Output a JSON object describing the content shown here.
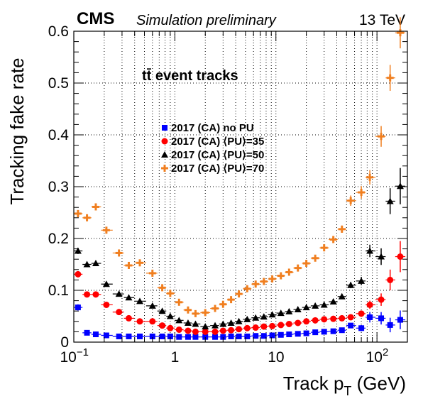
{
  "header": {
    "experiment": "CMS",
    "status": "Simulation preliminary",
    "energy": "13 TeV"
  },
  "annotation": "tt̄ event tracks",
  "chart_data": {
    "type": "scatter",
    "xlabel": "Track p_T (GeV)",
    "ylabel": "Tracking fake rate",
    "xscale": "log",
    "xlim": [
      0.1,
      200
    ],
    "ylim": [
      0,
      0.6
    ],
    "grid": true,
    "legend_position": "center-left",
    "x_ticks": [
      {
        "value": 0.1,
        "label": "10",
        "exp": "−1"
      },
      {
        "value": 1,
        "label": "1",
        "exp": ""
      },
      {
        "value": 10,
        "label": "10",
        "exp": ""
      },
      {
        "value": 100,
        "label": "10",
        "exp": "2"
      }
    ],
    "y_ticks": [
      0,
      0.1,
      0.2,
      0.3,
      0.4,
      0.5,
      0.6
    ],
    "x": [
      0.11,
      0.135,
      0.165,
      0.21,
      0.28,
      0.35,
      0.45,
      0.6,
      0.75,
      0.9,
      1.1,
      1.35,
      1.6,
      2.0,
      2.5,
      3.0,
      3.6,
      4.3,
      5.2,
      6.3,
      7.6,
      9.2,
      11.2,
      13.5,
      16.5,
      20,
      24.5,
      30,
      37,
      45,
      55,
      70,
      85,
      110,
      135,
      170
    ],
    "series": [
      {
        "name": "2017 (CA) no PU",
        "marker": "square",
        "color": "#0000ff",
        "y": [
          0.067,
          0.018,
          0.015,
          0.013,
          0.011,
          0.011,
          0.011,
          0.011,
          0.011,
          0.011,
          0.01,
          0.01,
          0.01,
          0.01,
          0.01,
          0.01,
          0.011,
          0.011,
          0.011,
          0.012,
          0.012,
          0.013,
          0.014,
          0.015,
          0.016,
          0.017,
          0.019,
          0.02,
          0.021,
          0.023,
          0.032,
          0.027,
          0.048,
          0.046,
          0.033,
          0.043
        ],
        "err": [
          0.006,
          0.003,
          0.002,
          0.002,
          0.002,
          0.002,
          0.002,
          0.002,
          0.002,
          0.002,
          0.002,
          0.002,
          0.002,
          0.002,
          0.002,
          0.002,
          0.002,
          0.002,
          0.002,
          0.002,
          0.002,
          0.002,
          0.002,
          0.002,
          0.002,
          0.003,
          0.003,
          0.003,
          0.004,
          0.004,
          0.005,
          0.006,
          0.01,
          0.012,
          0.014,
          0.018
        ]
      },
      {
        "name": "2017 (CA) ⟨PU⟩=35",
        "marker": "circle",
        "color": "#ff0000",
        "y": [
          0.131,
          0.092,
          0.092,
          0.072,
          0.058,
          0.046,
          0.04,
          0.04,
          0.032,
          0.027,
          0.024,
          0.022,
          0.02,
          0.02,
          0.02,
          0.022,
          0.023,
          0.025,
          0.027,
          0.028,
          0.03,
          0.031,
          0.033,
          0.035,
          0.037,
          0.04,
          0.042,
          0.044,
          0.045,
          0.046,
          0.048,
          0.055,
          0.072,
          0.082,
          0.12,
          0.165
        ],
        "err": [
          0.006,
          0.004,
          0.004,
          0.003,
          0.003,
          0.003,
          0.003,
          0.003,
          0.002,
          0.002,
          0.002,
          0.002,
          0.002,
          0.002,
          0.002,
          0.002,
          0.002,
          0.002,
          0.002,
          0.002,
          0.002,
          0.002,
          0.002,
          0.002,
          0.003,
          0.003,
          0.003,
          0.003,
          0.004,
          0.004,
          0.005,
          0.006,
          0.008,
          0.012,
          0.02,
          0.03
        ]
      },
      {
        "name": "2017 (CA) ⟨PU⟩=50",
        "marker": "triangle",
        "color": "#000000",
        "y": [
          0.176,
          0.15,
          0.152,
          0.112,
          0.093,
          0.086,
          0.079,
          0.07,
          0.06,
          0.05,
          0.042,
          0.037,
          0.035,
          0.03,
          0.032,
          0.035,
          0.037,
          0.04,
          0.044,
          0.047,
          0.049,
          0.053,
          0.056,
          0.059,
          0.063,
          0.067,
          0.07,
          0.072,
          0.078,
          0.088,
          0.11,
          0.118,
          0.176,
          0.165,
          0.272,
          0.301
        ],
        "err": [
          0.006,
          0.005,
          0.005,
          0.004,
          0.004,
          0.003,
          0.003,
          0.003,
          0.003,
          0.003,
          0.002,
          0.002,
          0.002,
          0.002,
          0.002,
          0.002,
          0.002,
          0.002,
          0.002,
          0.002,
          0.002,
          0.002,
          0.002,
          0.003,
          0.003,
          0.003,
          0.003,
          0.004,
          0.004,
          0.005,
          0.006,
          0.008,
          0.012,
          0.016,
          0.025,
          0.035
        ]
      },
      {
        "name": "2017 (CA) ⟨PU⟩=70",
        "marker": "cross",
        "color": "#f07f20",
        "y": [
          0.248,
          0.24,
          0.261,
          0.216,
          0.172,
          0.148,
          0.153,
          0.133,
          0.105,
          0.094,
          0.077,
          0.062,
          0.055,
          0.057,
          0.065,
          0.073,
          0.082,
          0.093,
          0.103,
          0.112,
          0.117,
          0.122,
          0.128,
          0.135,
          0.143,
          0.152,
          0.162,
          0.182,
          0.198,
          0.218,
          0.273,
          0.289,
          0.318,
          0.397,
          0.51,
          0.597
        ],
        "err": [
          0.007,
          0.006,
          0.006,
          0.005,
          0.005,
          0.004,
          0.004,
          0.004,
          0.003,
          0.003,
          0.003,
          0.003,
          0.003,
          0.003,
          0.003,
          0.003,
          0.003,
          0.003,
          0.003,
          0.003,
          0.003,
          0.003,
          0.003,
          0.004,
          0.004,
          0.004,
          0.005,
          0.005,
          0.006,
          0.007,
          0.01,
          0.012,
          0.014,
          0.02,
          0.025,
          0.03
        ]
      }
    ]
  }
}
